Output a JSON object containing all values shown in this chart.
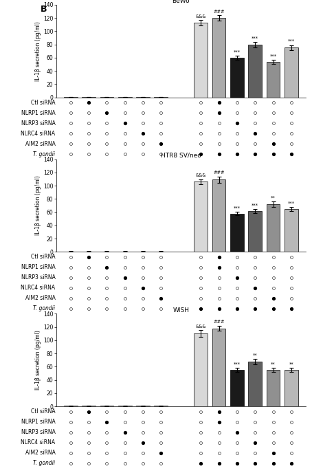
{
  "titles": [
    "BeWo",
    "HTR8 SV/neo",
    "WISH"
  ],
  "row_labels": [
    "Ctl siRNA",
    "NLRP1 siRNA",
    "NLRP3 siRNA",
    "NLRC4 siRNA",
    "AIM2 siRNA",
    "T. gondii"
  ],
  "ylabel": "IL-1β secretion (pg/ml)",
  "ylim": [
    0,
    140
  ],
  "yticks": [
    0,
    20,
    40,
    60,
    80,
    100,
    120,
    140
  ],
  "bar_values": {
    "BeWo": {
      "g1": [
        0.8,
        0.8,
        0.8,
        0.8,
        0.8,
        0.8
      ],
      "g2": [
        113,
        120,
        60,
        80,
        54,
        75
      ],
      "e1": [
        0.3,
        0.3,
        0.3,
        0.3,
        0.3,
        0.3
      ],
      "e2": [
        4,
        4,
        3,
        4,
        3,
        4
      ]
    },
    "HTR8 SV/neo": {
      "g1": [
        0.8,
        0.8,
        0.8,
        0.8,
        0.8,
        0.8
      ],
      "g2": [
        106,
        109,
        58,
        62,
        72,
        65
      ],
      "e1": [
        0.3,
        0.3,
        0.3,
        0.3,
        0.3,
        0.3
      ],
      "e2": [
        4,
        5,
        3,
        3,
        4,
        3
      ]
    },
    "WISH": {
      "g1": [
        0.8,
        0.8,
        0.8,
        0.8,
        0.8,
        0.8
      ],
      "g2": [
        110,
        118,
        55,
        68,
        55,
        55
      ],
      "e1": [
        0.3,
        0.3,
        0.3,
        0.3,
        0.3,
        0.3
      ],
      "e2": [
        5,
        4,
        3,
        4,
        3,
        3
      ]
    }
  },
  "annotations": {
    "BeWo": [
      "&&&",
      "###",
      "***",
      "***",
      "***",
      "***"
    ],
    "HTR8 SV/neo": [
      "&&&",
      "###",
      "***",
      "***",
      "**",
      "***"
    ],
    "WISH": [
      "&&&",
      "###",
      "***",
      "**",
      "**",
      "**"
    ]
  },
  "bar_colors_g1": [
    "#d8d8d8",
    "#d8d8d8",
    "#d8d8d8",
    "#d8d8d8",
    "#d8d8d8",
    "#d8d8d8"
  ],
  "bar_colors_g2": [
    "#d8d8d8",
    "#aaaaaa",
    "#1a1a1a",
    "#606060",
    "#909090",
    "#b8b8b8"
  ],
  "dot_pattern": {
    "BeWo": [
      [
        "-",
        "+",
        "-",
        "-",
        "-",
        "-",
        "-",
        "+",
        "-",
        "-",
        "-",
        "-"
      ],
      [
        "-",
        "-",
        "+",
        "-",
        "-",
        "-",
        "-",
        "+",
        "-",
        "-",
        "-",
        "-"
      ],
      [
        "-",
        "-",
        "-",
        "+",
        "-",
        "-",
        "-",
        "-",
        "+",
        "-",
        "-",
        "-"
      ],
      [
        "-",
        "-",
        "-",
        "-",
        "+",
        "-",
        "-",
        "-",
        "-",
        "+",
        "-",
        "-"
      ],
      [
        "-",
        "-",
        "-",
        "-",
        "-",
        "+",
        "-",
        "-",
        "-",
        "-",
        "+",
        "-"
      ],
      [
        "-",
        "-",
        "-",
        "-",
        "-",
        "-",
        "+",
        "+",
        "+",
        "+",
        "+",
        "+"
      ]
    ],
    "HTR8 SV/neo": [
      [
        "-",
        "+",
        "-",
        "-",
        "-",
        "-",
        "-",
        "+",
        "-",
        "-",
        "-",
        "-"
      ],
      [
        "-",
        "-",
        "+",
        "-",
        "-",
        "-",
        "-",
        "+",
        "-",
        "-",
        "-",
        "-"
      ],
      [
        "-",
        "-",
        "-",
        "+",
        "-",
        "-",
        "-",
        "-",
        "+",
        "-",
        "-",
        "-"
      ],
      [
        "-",
        "-",
        "-",
        "-",
        "+",
        "-",
        "-",
        "-",
        "-",
        "+",
        "-",
        "-"
      ],
      [
        "-",
        "-",
        "-",
        "-",
        "-",
        "+",
        "-",
        "-",
        "-",
        "-",
        "+",
        "-"
      ],
      [
        "-",
        "-",
        "-",
        "-",
        "-",
        "-",
        "+",
        "+",
        "+",
        "+",
        "+",
        "+"
      ]
    ],
    "WISH": [
      [
        "-",
        "+",
        "-",
        "-",
        "-",
        "-",
        "-",
        "+",
        "-",
        "-",
        "-",
        "-"
      ],
      [
        "-",
        "-",
        "+",
        "-",
        "-",
        "-",
        "-",
        "+",
        "-",
        "-",
        "-",
        "-"
      ],
      [
        "-",
        "-",
        "-",
        "+",
        "-",
        "-",
        "-",
        "-",
        "+",
        "-",
        "-",
        "-"
      ],
      [
        "-",
        "-",
        "-",
        "-",
        "+",
        "-",
        "-",
        "-",
        "-",
        "+",
        "-",
        "-"
      ],
      [
        "-",
        "-",
        "-",
        "-",
        "-",
        "+",
        "-",
        "-",
        "-",
        "-",
        "+",
        "-"
      ],
      [
        "-",
        "-",
        "-",
        "-",
        "-",
        "-",
        "+",
        "+",
        "+",
        "+",
        "+",
        "+"
      ]
    ]
  }
}
